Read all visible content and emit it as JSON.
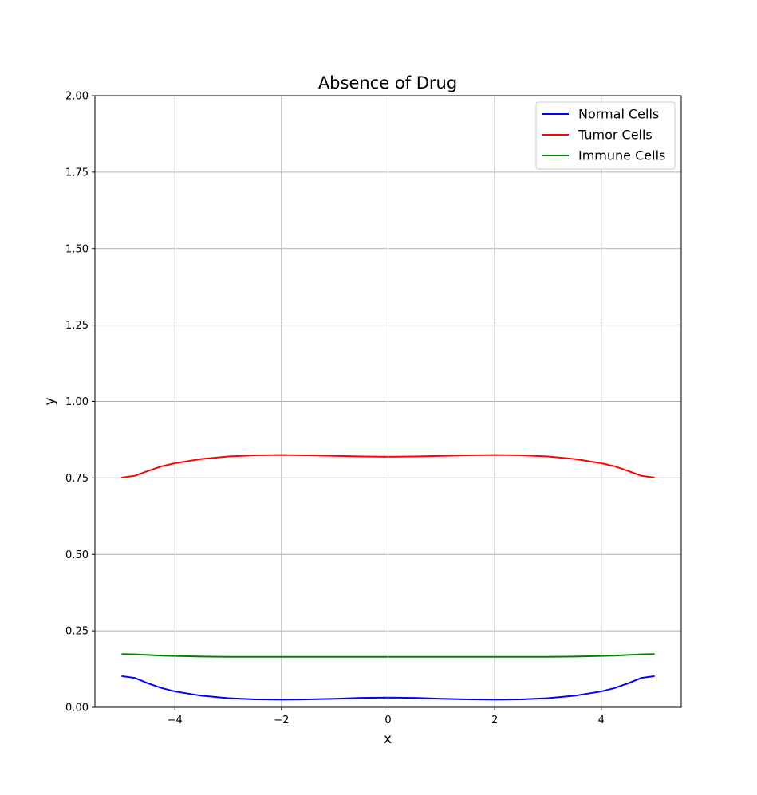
{
  "chart_data": {
    "type": "line",
    "title": "Absence of Drug",
    "xlabel": "x",
    "ylabel": "y",
    "xlim": [
      -5.5,
      5.5
    ],
    "ylim": [
      0,
      2.0
    ],
    "grid": true,
    "legend_position": "top-right",
    "x_ticks": [
      -4,
      -2,
      0,
      2,
      4
    ],
    "x_tick_labels": [
      "−4",
      "−2",
      "0",
      "2",
      "4"
    ],
    "y_ticks": [
      0,
      0.25,
      0.5,
      0.75,
      1.0,
      1.25,
      1.5,
      1.75,
      2.0
    ],
    "y_tick_labels": [
      "0.00",
      "0.25",
      "0.50",
      "0.75",
      "1.00",
      "1.25",
      "1.50",
      "1.75",
      "2.00"
    ],
    "x": [
      -5,
      -4.75,
      -4.5,
      -4.25,
      -4,
      -3.5,
      -3,
      -2.5,
      -2,
      -1.5,
      -1,
      -0.5,
      0,
      0.5,
      1,
      1.5,
      2,
      2.5,
      3,
      3.5,
      4,
      4.25,
      4.5,
      4.75,
      5
    ],
    "series": [
      {
        "name": "Normal Cells",
        "color": "#0000ff",
        "values": [
          0.102,
          0.096,
          0.078,
          0.063,
          0.052,
          0.038,
          0.03,
          0.026,
          0.025,
          0.026,
          0.028,
          0.031,
          0.032,
          0.031,
          0.028,
          0.026,
          0.025,
          0.026,
          0.03,
          0.038,
          0.052,
          0.063,
          0.078,
          0.096,
          0.102
        ]
      },
      {
        "name": "Tumor Cells",
        "color": "#ff0000",
        "values": [
          0.751,
          0.757,
          0.773,
          0.788,
          0.798,
          0.812,
          0.82,
          0.824,
          0.825,
          0.824,
          0.822,
          0.82,
          0.819,
          0.82,
          0.822,
          0.824,
          0.825,
          0.824,
          0.82,
          0.812,
          0.798,
          0.788,
          0.773,
          0.757,
          0.751
        ]
      },
      {
        "name": "Immune Cells",
        "color": "#008000",
        "values": [
          0.174,
          0.173,
          0.171,
          0.169,
          0.168,
          0.166,
          0.165,
          0.165,
          0.165,
          0.165,
          0.165,
          0.165,
          0.165,
          0.165,
          0.165,
          0.165,
          0.165,
          0.165,
          0.165,
          0.166,
          0.168,
          0.169,
          0.171,
          0.173,
          0.174
        ]
      }
    ]
  }
}
